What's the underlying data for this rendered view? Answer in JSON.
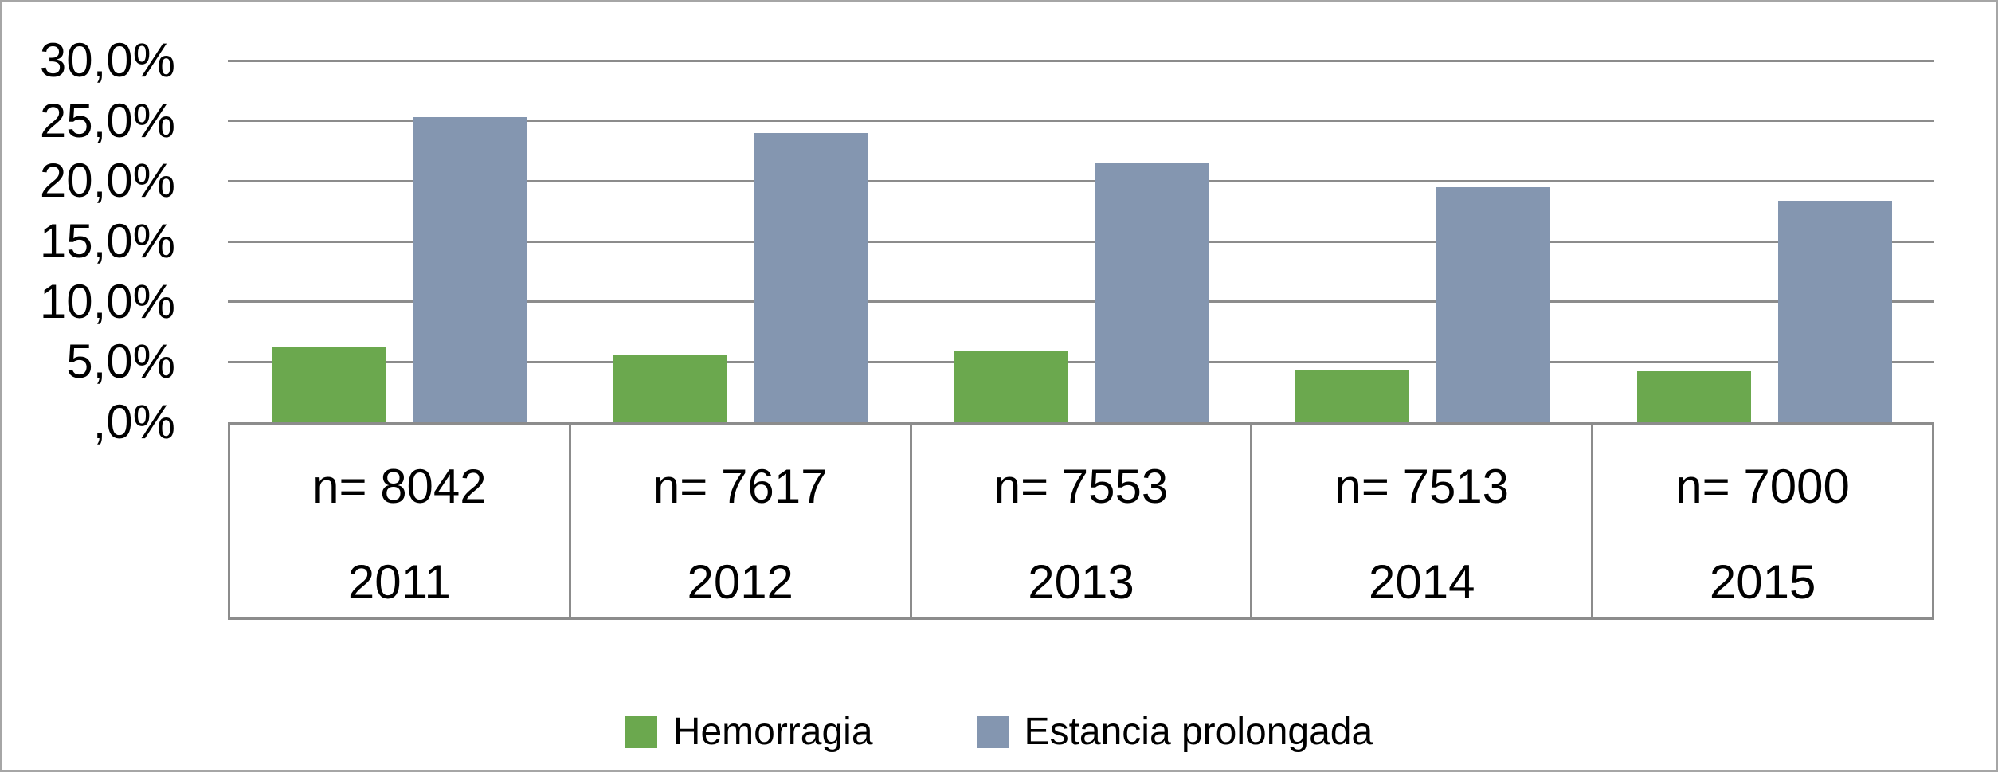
{
  "frame": {
    "background": "#ffffff",
    "border_color": "#a6a6a6",
    "gridline_color": "#8c8c8c",
    "text_color": "#000000"
  },
  "chart_data": {
    "type": "bar",
    "title": "",
    "xlabel": "",
    "ylabel": "",
    "categories": [
      "2011",
      "2012",
      "2013",
      "2014",
      "2015"
    ],
    "category_counts": [
      "n= 8042",
      "n= 7617",
      "n= 7553",
      "n= 7513",
      "n= 7000"
    ],
    "series": [
      {
        "name": "Hemorragia",
        "color": "#6ba84e",
        "values": [
          6.2,
          5.6,
          5.9,
          4.3,
          4.2
        ]
      },
      {
        "name": "Estancia prolongada",
        "color": "#8496b0",
        "values": [
          25.3,
          24.0,
          21.5,
          19.5,
          18.4
        ]
      }
    ],
    "ylim": [
      0,
      30
    ],
    "ytick_values": [
      0,
      5,
      10,
      15,
      20,
      25,
      30
    ],
    "ytick_labels": [
      ",0%",
      "5,0%",
      "10,0%",
      "15,0%",
      "20,0%",
      "25,0%",
      "30,0%"
    ],
    "grid": true,
    "legend_position": "bottom-center",
    "units": "percent"
  }
}
